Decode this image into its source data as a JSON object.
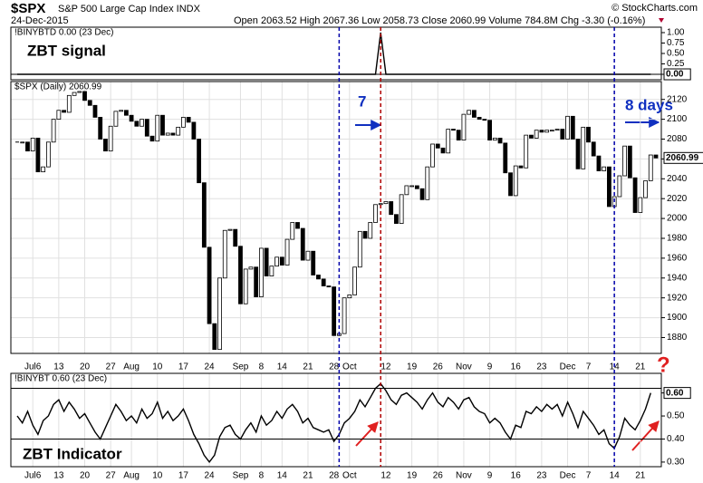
{
  "header": {
    "symbol": "$SPX",
    "name": "S&P 500 Large Cap Index INDX",
    "date": "24-Dec-2015",
    "quote": "Open 2063.52 High 2067.36 Low 2058.73 Close 2060.99 Volume 784.8M Chg -3.30 (-0.16%)",
    "source": "© StockCharts.com"
  },
  "event_lines": [
    {
      "index": 62,
      "color": "#0000aa"
    },
    {
      "index": 70,
      "color": "#b00000"
    },
    {
      "index": 115,
      "color": "#0000aa"
    }
  ],
  "chart_data": [
    {
      "type": "line",
      "legend": "!BINYBTD 0.00 (23 Dec)",
      "annotation": "ZBT signal",
      "color": "#000000",
      "last_label": "0.00",
      "ylim": [
        -0.13,
        1.13
      ],
      "reference_lines": [
        0
      ],
      "yticks": [
        {
          "value": 0,
          "label": "0.00"
        },
        {
          "value": 0.25,
          "label": "0.25"
        },
        {
          "value": 0.5,
          "label": "0.50"
        },
        {
          "value": 0.75,
          "label": "0.75"
        },
        {
          "value": 1,
          "label": "1.00"
        }
      ],
      "values": [
        0,
        0,
        0,
        0,
        0,
        0,
        0,
        0,
        0,
        0,
        0,
        0,
        0,
        0,
        0,
        0,
        0,
        0,
        0,
        0,
        0,
        0,
        0,
        0,
        0,
        0,
        0,
        0,
        0,
        0,
        0,
        0,
        0,
        0,
        0,
        0,
        0,
        0,
        0,
        0,
        0,
        0,
        0,
        0,
        0,
        0,
        0,
        0,
        0,
        0,
        0,
        0,
        0,
        0,
        0,
        0,
        0,
        0,
        0,
        0,
        0,
        0,
        0,
        0,
        0,
        0,
        0,
        0,
        0,
        0,
        1,
        0,
        0,
        0,
        0,
        0,
        0,
        0,
        0,
        0,
        0,
        0,
        0,
        0,
        0,
        0,
        0,
        0,
        0,
        0,
        0,
        0,
        0,
        0,
        0,
        0,
        0,
        0,
        0,
        0,
        0,
        0,
        0,
        0,
        0,
        0,
        0,
        0,
        0,
        0,
        0,
        0,
        0,
        0,
        0,
        0,
        0,
        0,
        0,
        0,
        0,
        0,
        0,
        null
      ]
    },
    {
      "type": "candlestick",
      "legend": "$SPX (Daily) 2060.99",
      "last_label": "2060.99",
      "annotations": [
        "7",
        "8 days"
      ],
      "ylim": [
        1864,
        2138
      ],
      "grid": true,
      "yticks": [
        1880,
        1900,
        1920,
        1940,
        1960,
        1980,
        2000,
        2020,
        2040,
        2060,
        2080,
        2100,
        2120
      ],
      "categories": [
        null,
        null,
        null,
        "Jul6",
        null,
        null,
        null,
        null,
        "13",
        null,
        null,
        null,
        null,
        "20",
        null,
        null,
        null,
        null,
        "27",
        null,
        null,
        null,
        "Aug",
        null,
        null,
        null,
        null,
        "10",
        null,
        null,
        null,
        null,
        "17",
        null,
        null,
        null,
        null,
        "24",
        null,
        null,
        null,
        null,
        null,
        "Sep",
        null,
        null,
        null,
        "8",
        null,
        null,
        null,
        "14",
        null,
        null,
        null,
        null,
        "21",
        null,
        null,
        null,
        null,
        "28",
        null,
        null,
        "Oct",
        null,
        null,
        null,
        null,
        null,
        null,
        "12",
        null,
        null,
        null,
        null,
        "19",
        null,
        null,
        null,
        null,
        "26",
        null,
        null,
        null,
        null,
        "Nov",
        null,
        null,
        null,
        null,
        "9",
        null,
        null,
        null,
        null,
        "16",
        null,
        null,
        null,
        null,
        "23",
        null,
        null,
        null,
        null,
        "Dec",
        null,
        null,
        null,
        "7",
        null,
        null,
        null,
        null,
        "14",
        null,
        null,
        null,
        null,
        "21",
        null,
        null,
        null
      ],
      "values": [
        2077,
        2077,
        2068,
        2081,
        2047,
        2052,
        2077,
        2100,
        2109,
        2107,
        2124,
        2127,
        2128,
        2119,
        2114,
        2102,
        2080,
        2068,
        2093,
        2108,
        2109,
        2104,
        2098,
        2093,
        2100,
        2083,
        2078,
        2104,
        2084,
        2086,
        2084,
        2092,
        2102,
        2097,
        2080,
        2036,
        1971,
        1894,
        1868,
        1940,
        1988,
        1989,
        1972,
        1914,
        1949,
        1951,
        1921,
        1970,
        1942,
        1952,
        1961,
        1953,
        1979,
        1996,
        1990,
        1958,
        1967,
        1943,
        1939,
        1932,
        1931,
        1882,
        1884,
        1920,
        1923,
        1951,
        1987,
        1980,
        1996,
        2014,
        2015,
        2017,
        2004,
        1995,
        2024,
        2033,
        2033,
        2030,
        2019,
        2052,
        2075,
        2071,
        2066,
        2090,
        2089,
        2079,
        2105,
        2109,
        2102,
        2100,
        2099,
        2079,
        2081,
        2076,
        2046,
        2023,
        2053,
        2051,
        2084,
        2081,
        2089,
        2087,
        2089,
        2089,
        2090,
        2080,
        2103,
        2080,
        2050,
        2092,
        2077,
        2063,
        2048,
        2052,
        2012,
        2022,
        2043,
        2073,
        2041,
        2006,
        2021,
        2038,
        2064,
        2061
      ]
    },
    {
      "type": "line",
      "legend": "!BINYBT 0.60 (23 Dec)",
      "annotations": [
        "ZBT Indicator",
        "?"
      ],
      "color": "#000000",
      "last_label": "0.60",
      "ylim": [
        0.28,
        0.685
      ],
      "reference_lines": [
        0.4,
        0.62
      ],
      "yticks": [
        {
          "value": 0.3,
          "label": "0.30"
        },
        {
          "value": 0.4,
          "label": "0.40"
        },
        {
          "value": 0.5,
          "label": "0.50"
        },
        {
          "value": 0.6,
          "label": "0.60"
        }
      ],
      "categories": [
        null,
        null,
        null,
        "Jul6",
        null,
        null,
        null,
        null,
        "13",
        null,
        null,
        null,
        null,
        "20",
        null,
        null,
        null,
        null,
        "27",
        null,
        null,
        null,
        "Aug",
        null,
        null,
        null,
        null,
        "10",
        null,
        null,
        null,
        null,
        "17",
        null,
        null,
        null,
        null,
        "24",
        null,
        null,
        null,
        null,
        null,
        "Sep",
        null,
        null,
        null,
        "8",
        null,
        null,
        null,
        "14",
        null,
        null,
        null,
        null,
        "21",
        null,
        null,
        null,
        null,
        "28",
        null,
        null,
        "Oct",
        null,
        null,
        null,
        null,
        null,
        null,
        "12",
        null,
        null,
        null,
        null,
        "19",
        null,
        null,
        null,
        null,
        "26",
        null,
        null,
        null,
        null,
        "Nov",
        null,
        null,
        null,
        null,
        "9",
        null,
        null,
        null,
        null,
        "16",
        null,
        null,
        null,
        null,
        "23",
        null,
        null,
        null,
        null,
        "Dec",
        null,
        null,
        null,
        "7",
        null,
        null,
        null,
        null,
        "14",
        null,
        null,
        null,
        null,
        "21",
        null,
        null,
        null
      ],
      "values": [
        0.5,
        0.47,
        0.52,
        0.46,
        0.42,
        0.48,
        0.5,
        0.55,
        0.57,
        0.52,
        0.56,
        0.53,
        0.49,
        0.51,
        0.47,
        0.43,
        0.4,
        0.45,
        0.5,
        0.55,
        0.52,
        0.48,
        0.5,
        0.47,
        0.53,
        0.49,
        0.51,
        0.56,
        0.49,
        0.52,
        0.48,
        0.5,
        0.53,
        0.48,
        0.42,
        0.38,
        0.33,
        0.3,
        0.33,
        0.41,
        0.45,
        0.46,
        0.42,
        0.4,
        0.44,
        0.47,
        0.43,
        0.5,
        0.46,
        0.48,
        0.52,
        0.49,
        0.53,
        0.55,
        0.52,
        0.47,
        0.49,
        0.45,
        0.44,
        0.43,
        0.44,
        0.39,
        0.42,
        0.47,
        0.49,
        0.52,
        0.57,
        0.54,
        0.58,
        0.62,
        0.64,
        0.61,
        0.57,
        0.55,
        0.59,
        0.6,
        0.58,
        0.56,
        0.53,
        0.57,
        0.6,
        0.56,
        0.54,
        0.58,
        0.56,
        0.53,
        0.57,
        0.58,
        0.54,
        0.52,
        0.51,
        0.47,
        0.49,
        0.47,
        0.43,
        0.4,
        0.46,
        0.45,
        0.52,
        0.51,
        0.54,
        0.52,
        0.55,
        0.53,
        0.55,
        0.5,
        0.56,
        0.51,
        0.45,
        0.52,
        0.49,
        0.46,
        0.42,
        0.44,
        0.38,
        0.36,
        0.41,
        0.49,
        0.46,
        0.44,
        0.48,
        0.53,
        0.6,
        null
      ]
    }
  ]
}
